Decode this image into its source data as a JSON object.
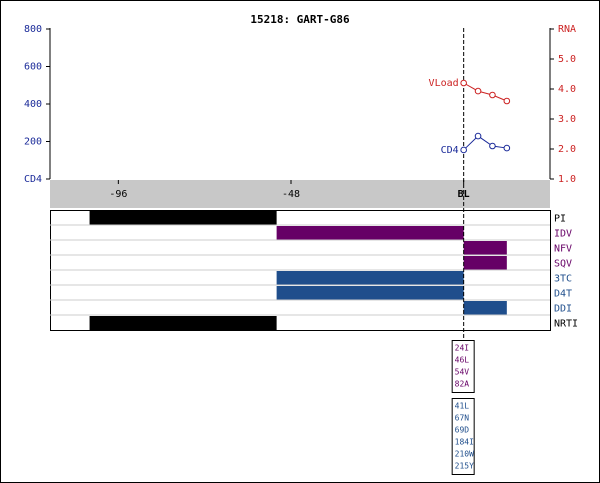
{
  "chart_data": {
    "type": "line",
    "title": "15218: GART-G86",
    "x": [
      0,
      4,
      8,
      12
    ],
    "xlim": [
      -115,
      24
    ],
    "xticks": [
      -96,
      -48,
      {
        "value": 0,
        "label": "BL"
      }
    ],
    "baseline": 0,
    "ylim": [
      0,
      800
    ],
    "yticks": [
      {
        "value": 0,
        "label": "CD4"
      },
      200,
      400,
      600,
      800
    ],
    "y2lim": [
      1,
      6
    ],
    "y2ticks": [
      {
        "value": 1,
        "label": "1.0"
      },
      {
        "value": 2,
        "label": "2.0"
      },
      {
        "value": 3,
        "label": "3.0"
      },
      {
        "value": 4,
        "label": "4.0"
      },
      {
        "value": 5,
        "label": "5.0"
      },
      {
        "value": 6,
        "label": "RNA"
      }
    ],
    "series": [
      {
        "name": "VLoad",
        "color": "#cc2222",
        "axis": "y2",
        "values": [
          4.2,
          3.93,
          3.8,
          3.6
        ]
      },
      {
        "name": "CD4",
        "color": "#1a2a99",
        "values": [
          155,
          229,
          176,
          165
        ]
      }
    ],
    "treatments": [
      {
        "label": "PI",
        "color": "#000000",
        "label_color": "#000000",
        "segments": [
          {
            "start": -104,
            "end": -52
          }
        ]
      },
      {
        "label": "IDV",
        "color": "#660066",
        "label_color": "#660066",
        "segments": [
          {
            "start": -52,
            "end": 0
          }
        ]
      },
      {
        "label": "NFV",
        "color": "#660066",
        "label_color": "#660066",
        "segments": [
          {
            "start": 0,
            "end": 12
          }
        ]
      },
      {
        "label": "SQV",
        "color": "#660066",
        "label_color": "#660066",
        "segments": [
          {
            "start": 0,
            "end": 12
          }
        ]
      },
      {
        "label": "3TC",
        "color": "#1f4e8c",
        "label_color": "#1f4e8c",
        "segments": [
          {
            "start": -52,
            "end": 0
          }
        ]
      },
      {
        "label": "D4T",
        "color": "#1f4e8c",
        "label_color": "#1f4e8c",
        "segments": [
          {
            "start": -52,
            "end": 0
          }
        ]
      },
      {
        "label": "DDI",
        "color": "#1f4e8c",
        "label_color": "#1f4e8c",
        "segments": [
          {
            "start": 0,
            "end": 12
          }
        ]
      },
      {
        "label": "NRTI",
        "color": "#000000",
        "label_color": "#000000",
        "segments": [
          {
            "start": -104,
            "end": -52
          }
        ]
      }
    ],
    "mutations": [
      {
        "color": "#660066",
        "items": [
          "24I",
          "46L",
          "54V",
          "82A"
        ]
      },
      {
        "color": "#1f4e8c",
        "items": [
          "41L",
          "67N",
          "69D",
          "184I",
          "210W",
          "215Y"
        ]
      }
    ]
  }
}
